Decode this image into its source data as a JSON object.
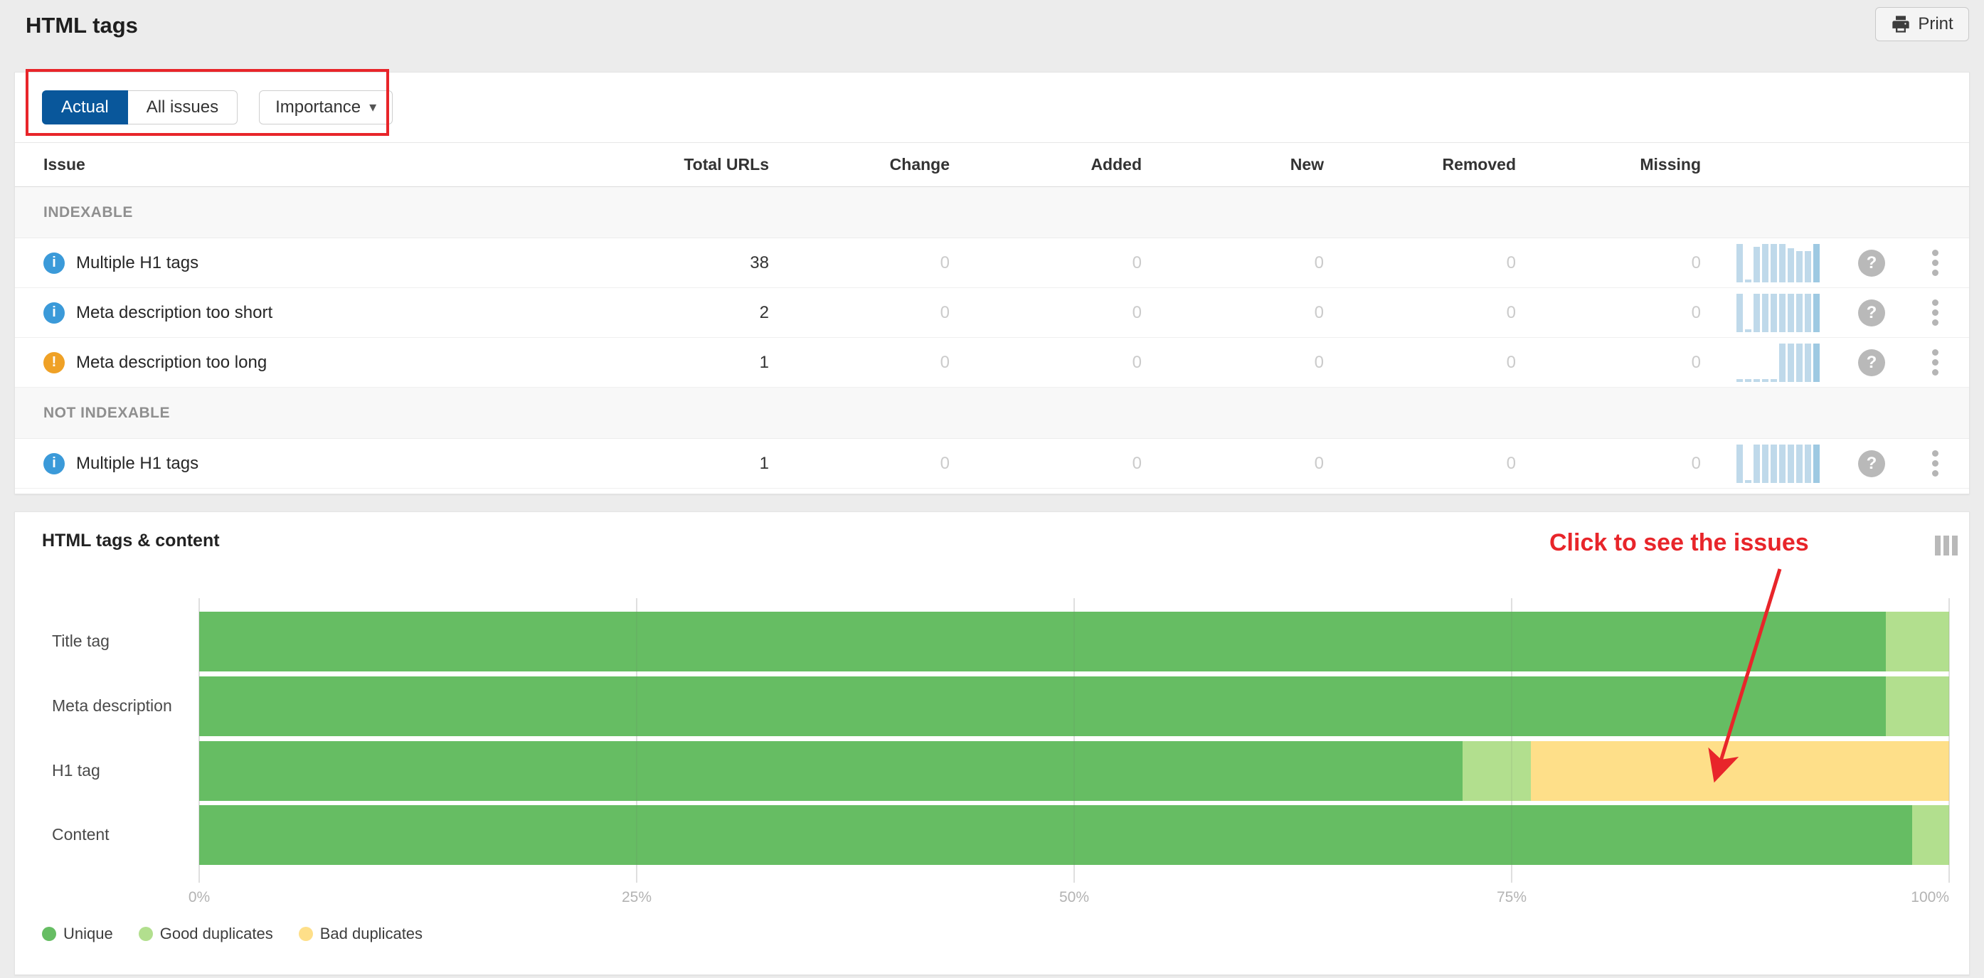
{
  "page": {
    "title": "HTML tags"
  },
  "toolbar": {
    "print_label": "Print"
  },
  "filters": {
    "actual_label": "Actual",
    "all_issues_label": "All issues",
    "importance_label": "Importance"
  },
  "table": {
    "columns": [
      "Issue",
      "Total URLs",
      "Change",
      "Added",
      "New",
      "Removed",
      "Missing"
    ],
    "sections": [
      {
        "label": "INDEXABLE",
        "rows": [
          {
            "severity": "info",
            "issue": "Multiple H1 tags",
            "total": "38",
            "change": "0",
            "added": "0",
            "new": "0",
            "removed": "0",
            "missing": "0",
            "spark": [
              1,
              0.08,
              0.92,
              1,
              1,
              1,
              0.88,
              0.82,
              0.82,
              1
            ]
          },
          {
            "severity": "info",
            "issue": "Meta description too short",
            "total": "2",
            "change": "0",
            "added": "0",
            "new": "0",
            "removed": "0",
            "missing": "0",
            "spark": [
              1,
              0.08,
              1,
              1,
              1,
              1,
              1,
              1,
              1,
              1
            ]
          },
          {
            "severity": "warning",
            "issue": "Meta description too long",
            "total": "1",
            "change": "0",
            "added": "0",
            "new": "0",
            "removed": "0",
            "missing": "0",
            "spark": [
              0.08,
              0.08,
              0.08,
              0.08,
              0.08,
              1,
              1,
              1,
              1,
              1
            ]
          }
        ]
      },
      {
        "label": "NOT INDEXABLE",
        "rows": [
          {
            "severity": "info",
            "issue": "Multiple H1 tags",
            "total": "1",
            "change": "0",
            "added": "0",
            "new": "0",
            "removed": "0",
            "missing": "0",
            "spark": [
              1,
              0.08,
              1,
              1,
              1,
              1,
              1,
              1,
              1,
              1
            ]
          }
        ]
      }
    ]
  },
  "chart": {
    "title": "HTML tags & content",
    "annotation": "Click to see the issues"
  },
  "chart_data": {
    "type": "bar",
    "orientation": "horizontal",
    "stacked": true,
    "categories": [
      "Title tag",
      "Meta description",
      "H1 tag",
      "Content"
    ],
    "series": [
      {
        "name": "Unique",
        "color": "#66bd63",
        "values": [
          96.4,
          96.4,
          72.2,
          97.9
        ]
      },
      {
        "name": "Good duplicates",
        "color": "#b2df8e",
        "values": [
          3.6,
          3.6,
          3.9,
          2.1
        ]
      },
      {
        "name": "Bad duplicates",
        "color": "#fedf89",
        "values": [
          0,
          0,
          23.9,
          0
        ]
      }
    ],
    "xlim": [
      0,
      100
    ],
    "tick_labels": [
      "0%",
      "25%",
      "50%",
      "75%",
      "100%"
    ],
    "grid": true,
    "legend_position": "bottom-left",
    "legend": [
      "Unique",
      "Good duplicates",
      "Bad duplicates"
    ]
  },
  "colors": {
    "accent_blue": "#09579b",
    "info_blue": "#3b9ad9",
    "warning_orange": "#efa126",
    "annotation_red": "#e8252a",
    "spark_blue": "#bfd9ea",
    "spark_blue_dark": "#9ec9e2"
  }
}
